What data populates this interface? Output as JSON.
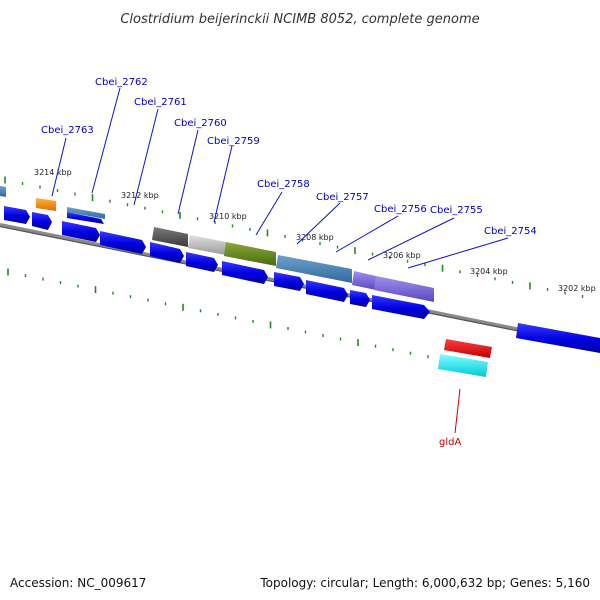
{
  "title": "Clostridium beijerinckii NCIMB 8052, complete genome",
  "footer": {
    "accession": "Accession: NC_009617",
    "summary": "Topology: circular; Length: 6,000,632 bp; Genes: 5,160"
  },
  "colors": {
    "backbone": "#7a7a7a",
    "tick": "#228b22",
    "cds": "#1010e0",
    "label_blue": "#0000cc",
    "label_red": "#cc0000"
  },
  "scale_labels": [
    "3214 kbp",
    "3212 kbp",
    "3210 kbp",
    "3208 kbp",
    "3206 kbp",
    "3204 kbp",
    "3202 kbp"
  ],
  "gene_labels": [
    {
      "name": "Cbei_2762",
      "color": "blue"
    },
    {
      "name": "Cbei_2761",
      "color": "blue"
    },
    {
      "name": "Cbei_2763",
      "color": "blue"
    },
    {
      "name": "Cbei_2760",
      "color": "blue"
    },
    {
      "name": "Cbei_2759",
      "color": "blue"
    },
    {
      "name": "Cbei_2758",
      "color": "blue"
    },
    {
      "name": "Cbei_2757",
      "color": "blue"
    },
    {
      "name": "Cbei_2756",
      "color": "blue"
    },
    {
      "name": "Cbei_2755",
      "color": "blue"
    },
    {
      "name": "Cbei_2754",
      "color": "blue"
    },
    {
      "name": "gldA",
      "color": "red"
    }
  ]
}
